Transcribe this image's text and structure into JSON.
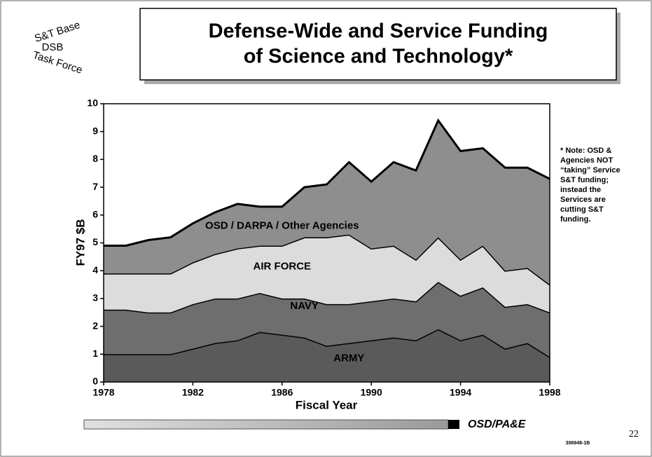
{
  "logo": {
    "top": "S&T Base",
    "middle": "DSB",
    "bottom": "Task Force"
  },
  "chart_data": {
    "type": "stacked_area",
    "title": [
      "Defense-Wide and Service Funding",
      "of Science and Technology*"
    ],
    "x_label": "Fiscal Year",
    "y_label": "FY97 $B",
    "x": [
      1978,
      1979,
      1980,
      1981,
      1982,
      1983,
      1984,
      1985,
      1986,
      1987,
      1988,
      1989,
      1990,
      1991,
      1992,
      1993,
      1994,
      1995,
      1996,
      1997,
      1998
    ],
    "series": [
      {
        "name": "ARMY",
        "color": "#5a5a5a",
        "values": [
          1.0,
          1.0,
          1.0,
          1.0,
          1.2,
          1.4,
          1.5,
          1.8,
          1.7,
          1.6,
          1.3,
          1.4,
          1.5,
          1.6,
          1.5,
          1.9,
          1.5,
          1.7,
          1.2,
          1.4,
          0.9
        ]
      },
      {
        "name": "NAVY",
        "color": "#6e6e6e",
        "values": [
          1.6,
          1.6,
          1.5,
          1.5,
          1.6,
          1.6,
          1.5,
          1.4,
          1.3,
          1.4,
          1.5,
          1.4,
          1.4,
          1.4,
          1.4,
          1.7,
          1.6,
          1.7,
          1.5,
          1.4,
          1.6
        ]
      },
      {
        "name": "AIR FORCE",
        "color": "#dcdcdc",
        "values": [
          1.3,
          1.3,
          1.4,
          1.4,
          1.5,
          1.6,
          1.8,
          1.7,
          1.9,
          2.2,
          2.4,
          2.5,
          1.9,
          1.9,
          1.5,
          1.6,
          1.3,
          1.5,
          1.3,
          1.3,
          1.0
        ]
      },
      {
        "name": "OSD / DARPA / Other Agencies",
        "color": "#8e8e8e",
        "values": [
          1.0,
          1.0,
          1.2,
          1.3,
          1.4,
          1.5,
          1.6,
          1.4,
          1.4,
          1.8,
          1.9,
          2.6,
          2.4,
          3.0,
          3.2,
          4.2,
          3.9,
          3.5,
          3.7,
          3.6,
          3.8
        ]
      }
    ],
    "xlim": [
      1978,
      1998
    ],
    "xticks": [
      1978,
      1982,
      1986,
      1990,
      1994,
      1998
    ],
    "ylim": [
      0,
      10
    ],
    "yticks": [
      0,
      1,
      2,
      3,
      4,
      5,
      6,
      7,
      8,
      9,
      10
    ],
    "note": [
      "* Note:  OSD &",
      "Agencies NOT",
      "“taking” Service",
      "S&T funding;",
      "instead the",
      "Services are",
      "cutting S&T",
      "funding."
    ]
  },
  "footer": {
    "source": "OSD/PA&E",
    "page": "22",
    "code": "306948-1B"
  }
}
